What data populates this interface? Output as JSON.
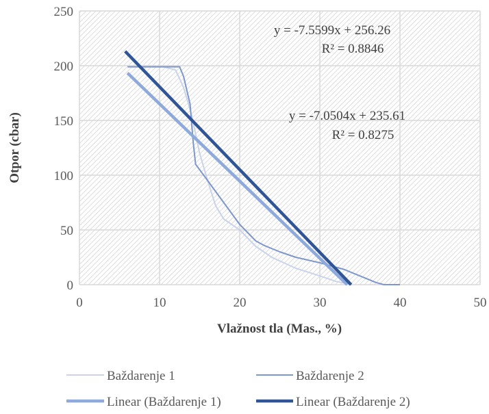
{
  "chart_data": {
    "type": "line",
    "title": "",
    "xlabel": "Vlažnost tla (Mas., %)",
    "ylabel": "Otpor  (cbar)",
    "xlim": [
      0,
      50
    ],
    "ylim": [
      0,
      250
    ],
    "xticks": [
      0,
      10,
      20,
      30,
      40,
      50
    ],
    "yticks": [
      0,
      50,
      100,
      150,
      200,
      250
    ],
    "grid": true,
    "plot_background": "hatched",
    "legend_position": "bottom",
    "series": [
      {
        "name": "Baždarenje 1",
        "kind": "data",
        "color": "#c9d4ea",
        "points": [
          [
            6,
            199
          ],
          [
            10.5,
            199
          ],
          [
            12,
            196
          ],
          [
            13,
            180
          ],
          [
            14,
            155
          ],
          [
            15,
            120
          ],
          [
            16,
            95
          ],
          [
            17,
            72
          ],
          [
            18,
            60
          ],
          [
            20,
            50
          ],
          [
            22,
            35
          ],
          [
            24,
            25
          ],
          [
            27,
            15
          ],
          [
            30,
            8
          ],
          [
            32,
            3
          ],
          [
            34,
            0
          ]
        ]
      },
      {
        "name": "Baždarenje 2",
        "kind": "data",
        "color": "#7d97cd",
        "points": [
          [
            6,
            199
          ],
          [
            10,
            199
          ],
          [
            12.5,
            199
          ],
          [
            13,
            190
          ],
          [
            13.8,
            165
          ],
          [
            14.2,
            130
          ],
          [
            14.5,
            110
          ],
          [
            15.5,
            100
          ],
          [
            17.5,
            80
          ],
          [
            20,
            55
          ],
          [
            22,
            40
          ],
          [
            23,
            36
          ],
          [
            25,
            30
          ],
          [
            27,
            25
          ],
          [
            30,
            20
          ],
          [
            33,
            14
          ],
          [
            35,
            8
          ],
          [
            37,
            2
          ],
          [
            38,
            0
          ],
          [
            39,
            0
          ],
          [
            40,
            0
          ]
        ]
      },
      {
        "name": "Linear (Baždarenje 1)",
        "kind": "trendline",
        "color": "#8ea9db",
        "slope": -7.0504,
        "intercept": 235.61,
        "x_range": [
          6,
          33.42
        ]
      },
      {
        "name": "Linear (Baždarenje 2)",
        "kind": "trendline",
        "color": "#2f5597",
        "slope": -7.5599,
        "intercept": 256.26,
        "x_range": [
          5.7,
          33.9
        ]
      }
    ],
    "annotations": [
      {
        "text": "y = -7.5599x + 256.26",
        "series": "Linear (Baždarenje 2)"
      },
      {
        "text": "R² = 0.8846",
        "series": "Linear (Baždarenje 2)"
      },
      {
        "text": "y = -7.0504x + 235.61",
        "series": "Linear (Baždarenje 1)"
      },
      {
        "text": "R² = 0.8275",
        "series": "Linear (Baždarenje 1)"
      }
    ]
  }
}
